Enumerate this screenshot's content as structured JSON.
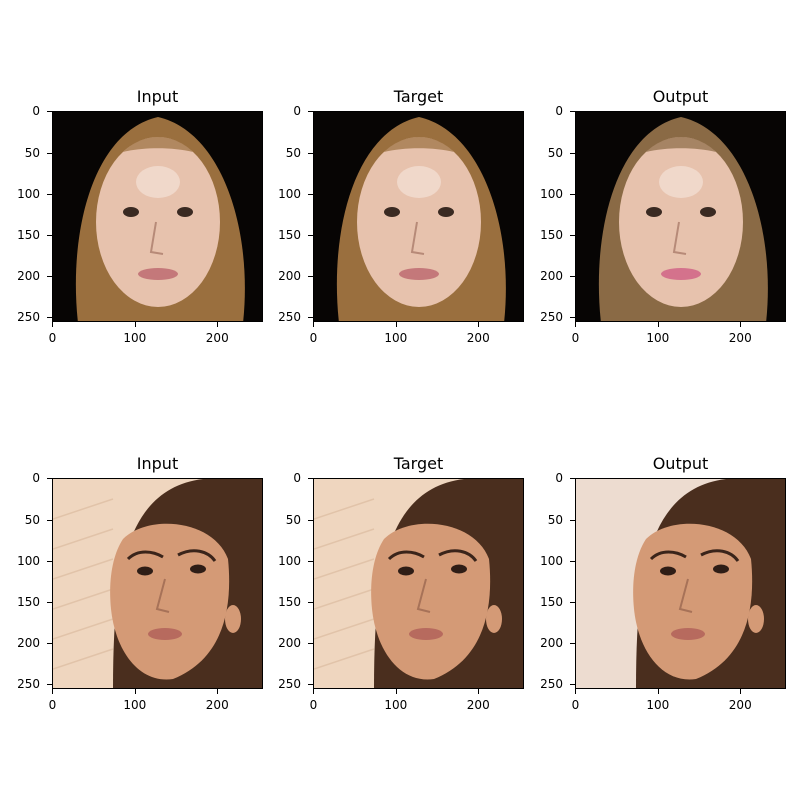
{
  "panels": [
    {
      "title": "Input",
      "subject": "face-1",
      "variant": "input"
    },
    {
      "title": "Target",
      "subject": "face-1",
      "variant": "target"
    },
    {
      "title": "Output",
      "subject": "face-1",
      "variant": "output"
    },
    {
      "title": "Input",
      "subject": "face-2",
      "variant": "input"
    },
    {
      "title": "Target",
      "subject": "face-2",
      "variant": "target"
    },
    {
      "title": "Output",
      "subject": "face-2",
      "variant": "output"
    }
  ],
  "axes": {
    "x_ticks": [
      "0",
      "100",
      "200"
    ],
    "y_ticks": [
      "0",
      "50",
      "100",
      "150",
      "200",
      "250"
    ]
  },
  "colors": {
    "face1_bg": "#070504",
    "face1_hair": "#9a6f3e",
    "face1_skin": "#e7c2ad",
    "face2_bg": "#efd6bf",
    "face2_hair": "#4a2e1e",
    "face2_skin": "#d49a76",
    "lips": "#c4787a"
  }
}
